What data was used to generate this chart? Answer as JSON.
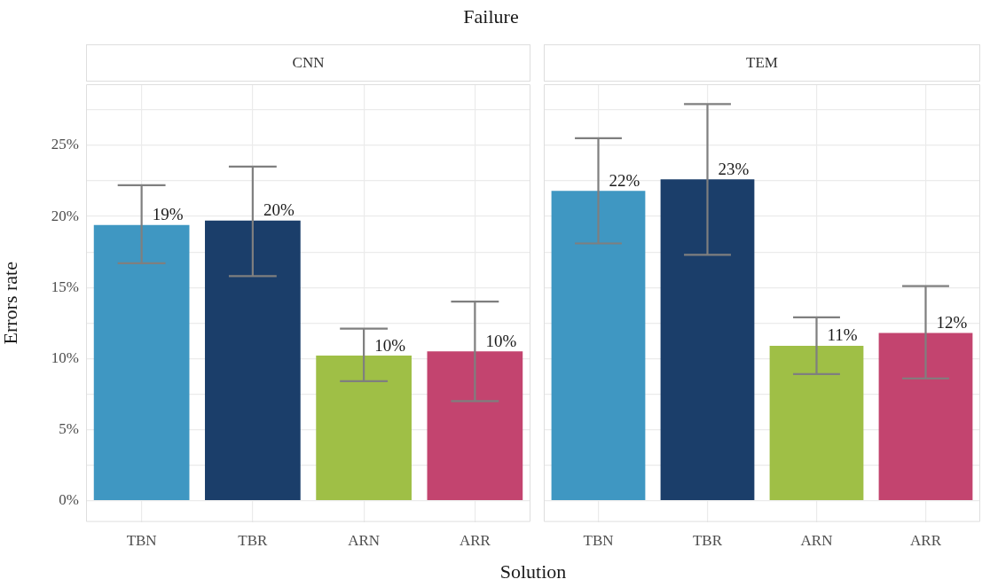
{
  "chart_data": [
    {
      "type": "bar",
      "title": "Failure",
      "subtitle": "CNN",
      "ylabel": "Errors rate",
      "categories": [
        "TBN",
        "TBR",
        "ARN",
        "ARR"
      ],
      "values": [
        19.4,
        19.7,
        10.2,
        10.5
      ],
      "colors": [
        "#3f97c2",
        "#1b3e6a",
        "#9fbf46",
        "#c3446f"
      ],
      "errors": [
        [
          16.7,
          22.2
        ],
        [
          15.8,
          23.5
        ],
        [
          8.4,
          12.1
        ],
        [
          7.0,
          14.0
        ]
      ],
      "value_labels": [
        "19%",
        "20%",
        "10%",
        "10%"
      ],
      "ylim": [
        -1.5,
        29.3
      ],
      "yticks": [
        {
          "value": 0,
          "label": "0%"
        },
        {
          "value": 2.5,
          "label": null
        },
        {
          "value": 5,
          "label": "5%"
        },
        {
          "value": 7.5,
          "label": null
        },
        {
          "value": 10,
          "label": "10%"
        },
        {
          "value": 12.5,
          "label": null
        },
        {
          "value": 15,
          "label": "15%"
        },
        {
          "value": 17.5,
          "label": null
        },
        {
          "value": 20,
          "label": "20%"
        },
        {
          "value": 22.5,
          "label": null
        },
        {
          "value": 25,
          "label": "25%"
        },
        {
          "value": 27.5,
          "label": null
        }
      ],
      "grid": true,
      "legend": false
    },
    {
      "type": "bar",
      "subtitle": "TEM",
      "xlabel": "Solution",
      "categories": [
        "TBN",
        "TBR",
        "ARN",
        "ARR"
      ],
      "values": [
        21.8,
        22.6,
        10.9,
        11.8
      ],
      "colors": [
        "#3f97c2",
        "#1b3e6a",
        "#9fbf46",
        "#c3446f"
      ],
      "errors": [
        [
          18.1,
          25.5
        ],
        [
          17.3,
          27.9
        ],
        [
          8.9,
          12.9
        ],
        [
          8.6,
          15.1
        ]
      ],
      "value_labels": [
        "22%",
        "23%",
        "11%",
        "12%"
      ],
      "ylim": [
        -1.5,
        29.3
      ],
      "yticks": [
        0,
        2.5,
        5,
        7.5,
        10,
        12.5,
        15,
        17.5,
        20,
        22.5,
        25,
        27.5
      ],
      "grid": true,
      "legend": false,
      "tick_labels": "x"
    }
  ]
}
